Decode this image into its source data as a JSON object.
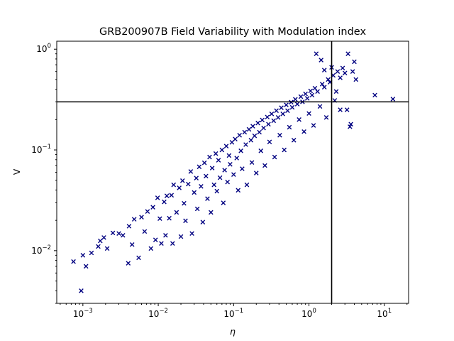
{
  "chart_data": {
    "type": "scatter",
    "title": "GRB200907B Field Variability with Modulation index",
    "xlabel": "η",
    "ylabel": "V",
    "xscale": "log",
    "yscale": "log",
    "xlim": [
      0.00045,
      21
    ],
    "ylim": [
      0.003,
      1.2
    ],
    "grid": false,
    "marker": "x",
    "marker_color": "#000080",
    "threshold_lines": {
      "horizontal_y": 0.3,
      "vertical_x": 2.0,
      "color": "#000000"
    },
    "x_ticks": [
      {
        "value": 0.001,
        "base": "10",
        "exp": "−3"
      },
      {
        "value": 0.01,
        "base": "10",
        "exp": "−2"
      },
      {
        "value": 0.1,
        "base": "10",
        "exp": "−1"
      },
      {
        "value": 1,
        "base": "10",
        "exp": "0"
      },
      {
        "value": 10,
        "base": "10",
        "exp": "1"
      }
    ],
    "y_ticks": [
      {
        "value": 0.01,
        "base": "10",
        "exp": "−2"
      },
      {
        "value": 0.1,
        "base": "10",
        "exp": "−1"
      },
      {
        "value": 1,
        "base": "10",
        "exp": "0"
      }
    ],
    "points": [
      [
        0.00075,
        0.0078
      ],
      [
        0.00095,
        0.004
      ],
      [
        0.001,
        0.009
      ],
      [
        0.0011,
        0.007
      ],
      [
        0.0013,
        0.0095
      ],
      [
        0.0016,
        0.011
      ],
      [
        0.0017,
        0.0125
      ],
      [
        0.0019,
        0.0135
      ],
      [
        0.0021,
        0.0105
      ],
      [
        0.0025,
        0.015
      ],
      [
        0.003,
        0.0148
      ],
      [
        0.0034,
        0.0142
      ],
      [
        0.004,
        0.0075
      ],
      [
        0.0041,
        0.0175
      ],
      [
        0.0045,
        0.0115
      ],
      [
        0.0048,
        0.0205
      ],
      [
        0.0055,
        0.0085
      ],
      [
        0.006,
        0.0215
      ],
      [
        0.0066,
        0.0155
      ],
      [
        0.0072,
        0.0245
      ],
      [
        0.008,
        0.0105
      ],
      [
        0.0085,
        0.027
      ],
      [
        0.0092,
        0.0128
      ],
      [
        0.0098,
        0.0335
      ],
      [
        0.0105,
        0.0208
      ],
      [
        0.011,
        0.0118
      ],
      [
        0.012,
        0.0305
      ],
      [
        0.0125,
        0.0142
      ],
      [
        0.013,
        0.035
      ],
      [
        0.014,
        0.021
      ],
      [
        0.015,
        0.0355
      ],
      [
        0.0155,
        0.0118
      ],
      [
        0.016,
        0.045
      ],
      [
        0.0175,
        0.024
      ],
      [
        0.019,
        0.042
      ],
      [
        0.02,
        0.0138
      ],
      [
        0.021,
        0.0495
      ],
      [
        0.022,
        0.0295
      ],
      [
        0.023,
        0.0198
      ],
      [
        0.025,
        0.0458
      ],
      [
        0.027,
        0.061
      ],
      [
        0.028,
        0.0148
      ],
      [
        0.03,
        0.0378
      ],
      [
        0.032,
        0.0525
      ],
      [
        0.033,
        0.026
      ],
      [
        0.035,
        0.068
      ],
      [
        0.037,
        0.0435
      ],
      [
        0.039,
        0.0192
      ],
      [
        0.041,
        0.0745
      ],
      [
        0.043,
        0.055
      ],
      [
        0.045,
        0.0328
      ],
      [
        0.048,
        0.085
      ],
      [
        0.05,
        0.024
      ],
      [
        0.052,
        0.066
      ],
      [
        0.055,
        0.045
      ],
      [
        0.058,
        0.092
      ],
      [
        0.06,
        0.039
      ],
      [
        0.063,
        0.079
      ],
      [
        0.066,
        0.053
      ],
      [
        0.07,
        0.1
      ],
      [
        0.073,
        0.0298
      ],
      [
        0.076,
        0.063
      ],
      [
        0.08,
        0.109
      ],
      [
        0.083,
        0.048
      ],
      [
        0.087,
        0.088
      ],
      [
        0.09,
        0.072
      ],
      [
        0.095,
        0.119
      ],
      [
        0.1,
        0.057
      ],
      [
        0.105,
        0.128
      ],
      [
        0.11,
        0.083
      ],
      [
        0.115,
        0.0398
      ],
      [
        0.12,
        0.14
      ],
      [
        0.125,
        0.098
      ],
      [
        0.13,
        0.065
      ],
      [
        0.14,
        0.15
      ],
      [
        0.145,
        0.113
      ],
      [
        0.15,
        0.045
      ],
      [
        0.16,
        0.16
      ],
      [
        0.17,
        0.125
      ],
      [
        0.175,
        0.075
      ],
      [
        0.18,
        0.172
      ],
      [
        0.19,
        0.138
      ],
      [
        0.2,
        0.059
      ],
      [
        0.21,
        0.185
      ],
      [
        0.22,
        0.15
      ],
      [
        0.23,
        0.098
      ],
      [
        0.24,
        0.198
      ],
      [
        0.25,
        0.165
      ],
      [
        0.26,
        0.07
      ],
      [
        0.28,
        0.212
      ],
      [
        0.29,
        0.18
      ],
      [
        0.3,
        0.12
      ],
      [
        0.32,
        0.228
      ],
      [
        0.34,
        0.195
      ],
      [
        0.35,
        0.085
      ],
      [
        0.37,
        0.245
      ],
      [
        0.39,
        0.21
      ],
      [
        0.41,
        0.14
      ],
      [
        0.43,
        0.262
      ],
      [
        0.45,
        0.228
      ],
      [
        0.47,
        0.1
      ],
      [
        0.5,
        0.28
      ],
      [
        0.52,
        0.245
      ],
      [
        0.55,
        0.168
      ],
      [
        0.58,
        0.298
      ],
      [
        0.6,
        0.265
      ],
      [
        0.63,
        0.125
      ],
      [
        0.66,
        0.318
      ],
      [
        0.7,
        0.285
      ],
      [
        0.74,
        0.2
      ],
      [
        0.78,
        0.338
      ],
      [
        0.82,
        0.3
      ],
      [
        0.86,
        0.152
      ],
      [
        0.9,
        0.36
      ],
      [
        0.95,
        0.325
      ],
      [
        1.0,
        0.23
      ],
      [
        1.05,
        0.385
      ],
      [
        1.1,
        0.35
      ],
      [
        1.15,
        0.175
      ],
      [
        1.2,
        0.41
      ],
      [
        1.3,
        0.38
      ],
      [
        1.4,
        0.27
      ],
      [
        1.5,
        0.45
      ],
      [
        1.6,
        0.42
      ],
      [
        1.7,
        0.21
      ],
      [
        1.8,
        0.5
      ],
      [
        1.9,
        0.47
      ],
      [
        2.1,
        0.55
      ],
      [
        2.2,
        0.31
      ],
      [
        2.4,
        0.6
      ],
      [
        2.6,
        0.52
      ],
      [
        2.8,
        0.65
      ],
      [
        3.0,
        0.58
      ],
      [
        3.3,
        0.9
      ],
      [
        3.6,
        0.18
      ],
      [
        3.8,
        0.6
      ],
      [
        4.0,
        0.75
      ],
      [
        4.2,
        0.5
      ],
      [
        7.5,
        0.35
      ],
      [
        13.0,
        0.32
      ],
      [
        1.25,
        0.9
      ],
      [
        1.6,
        0.62
      ],
      [
        2.0,
        0.66
      ],
      [
        2.6,
        0.25
      ],
      [
        3.2,
        0.25
      ],
      [
        3.5,
        0.17
      ],
      [
        2.3,
        0.38
      ],
      [
        1.45,
        0.78
      ]
    ]
  }
}
